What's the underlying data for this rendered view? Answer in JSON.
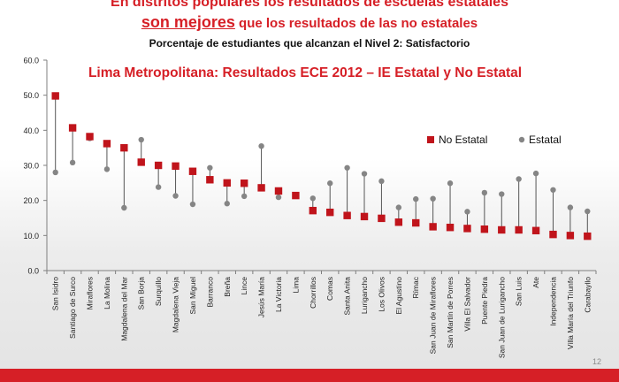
{
  "headline": {
    "line1": "En distritos populares los resultados de escuelas estatales",
    "line2_emphasis": "son mejores",
    "line2_rest": " que los resultados de las no estatales"
  },
  "subtitle": "Porcentaje de estudiantes que alcanzan el Nivel 2: Satisfactorio",
  "page_number": "12",
  "colors": {
    "accent": "#d61f26",
    "no_estatal": "#c0141b",
    "estatal": "#858585",
    "axis": "#7f7f7f"
  },
  "chart_data": {
    "type": "scatter",
    "title": "Lima Metropolitana: Resultados ECE 2012 – IE Estatal y No Estatal",
    "xlabel": "",
    "ylabel": "",
    "ylim": [
      0,
      60
    ],
    "yticks": [
      "0.0",
      "10.0",
      "20.0",
      "30.0",
      "40.0",
      "50.0",
      "60.0"
    ],
    "legend_position": "right",
    "grid": false,
    "categories": [
      "San Isidro",
      "Santiago de Surco",
      "Miraflores",
      "La Molina",
      "Magdalena del Mar",
      "San Borja",
      "Surquillo",
      "Magdalena Vieja",
      "San Miguel",
      "Barranco",
      "Breña",
      "Lince",
      "Jesús María",
      "La Victoria",
      "Lima",
      "Chorrillos",
      "Comas",
      "Santa Anita",
      "Lurigancho",
      "Los Olivos",
      "El Agustino",
      "Rímac",
      "San Juan de Miraflores",
      "San Martín de Porres",
      "Villa El Salvador",
      "Puente Piedra",
      "San Juan de Lurigancho",
      "San Luis",
      "Ate",
      "Independencia",
      "Villa María del Triunfo",
      "Carabayllo"
    ],
    "series": [
      {
        "name": "No Estatal",
        "marker": "square",
        "values": [
          49.8,
          40.7,
          38.2,
          36.2,
          35.0,
          30.9,
          30.0,
          29.8,
          28.3,
          25.9,
          25.0,
          24.9,
          23.6,
          22.7,
          21.4,
          17.1,
          16.6,
          15.7,
          15.4,
          14.9,
          13.8,
          13.6,
          12.5,
          12.3,
          12.0,
          11.8,
          11.6,
          11.6,
          11.4,
          10.3,
          10.0,
          9.8
        ]
      },
      {
        "name": "Estatal",
        "marker": "circle",
        "values": [
          28.0,
          30.8,
          37.7,
          28.9,
          17.9,
          37.3,
          23.8,
          21.3,
          18.9,
          29.3,
          19.1,
          21.2,
          35.5,
          20.9,
          21.5,
          20.6,
          24.9,
          29.3,
          27.6,
          25.5,
          18.0,
          20.4,
          20.5,
          24.9,
          16.8,
          22.2,
          21.8,
          26.1,
          27.7,
          23.0,
          18.0,
          16.9
        ]
      }
    ]
  }
}
